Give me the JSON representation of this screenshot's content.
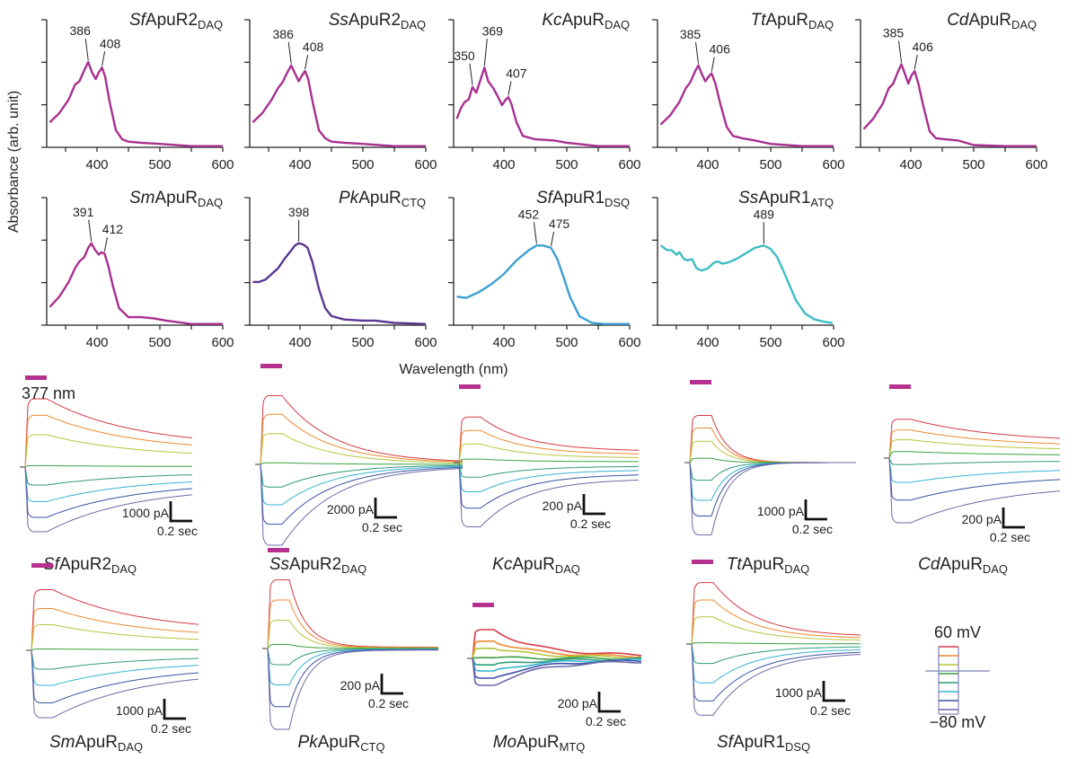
{
  "chart_data": [
    {
      "type": "line",
      "panel": "absorption-spectra",
      "xlabel": "Wavelength (nm)",
      "ylabel": "Absorbance (arb. unit)",
      "xlim": [
        320,
        600
      ],
      "ylim": [
        0,
        1.0
      ],
      "xticks": [
        400,
        500,
        600
      ],
      "xtick_labels": [
        "400",
        "500",
        "600"
      ],
      "yticks_count": 4,
      "grid": false,
      "series": [
        {
          "name": "SfApuR2",
          "italic": "Sf",
          "base": "ApuR2",
          "sub": "DAQ",
          "color": "#a8308f",
          "peaks": [
            386,
            408
          ],
          "x": [
            325,
            340,
            355,
            365,
            372,
            380,
            386,
            392,
            398,
            403,
            408,
            413,
            420,
            430,
            440,
            450,
            470,
            500,
            550,
            600
          ],
          "y": [
            0.22,
            0.3,
            0.42,
            0.55,
            0.58,
            0.68,
            0.75,
            0.66,
            0.6,
            0.66,
            0.7,
            0.62,
            0.4,
            0.15,
            0.07,
            0.05,
            0.04,
            0.03,
            0.01,
            0.01
          ]
        },
        {
          "name": "SsApuR2",
          "italic": "Ss",
          "base": "ApuR2",
          "sub": "DAQ",
          "color": "#a8308f",
          "peaks": [
            386,
            408
          ],
          "x": [
            325,
            340,
            355,
            365,
            372,
            380,
            386,
            392,
            398,
            403,
            408,
            413,
            420,
            430,
            440,
            450,
            470,
            500,
            550,
            600
          ],
          "y": [
            0.22,
            0.3,
            0.42,
            0.52,
            0.57,
            0.66,
            0.72,
            0.65,
            0.58,
            0.63,
            0.67,
            0.6,
            0.4,
            0.15,
            0.08,
            0.05,
            0.04,
            0.03,
            0.01,
            0.01
          ]
        },
        {
          "name": "KcApuR",
          "italic": "Kc",
          "base": "ApuR",
          "sub": "DAQ",
          "color": "#a8308f",
          "peaks": [
            350,
            369,
            407
          ],
          "x": [
            325,
            332,
            338,
            344,
            350,
            356,
            362,
            369,
            375,
            383,
            390,
            397,
            403,
            407,
            412,
            420,
            430,
            450,
            480,
            500,
            550,
            600
          ],
          "y": [
            0.25,
            0.35,
            0.4,
            0.42,
            0.53,
            0.48,
            0.58,
            0.7,
            0.58,
            0.52,
            0.45,
            0.37,
            0.42,
            0.44,
            0.38,
            0.22,
            0.1,
            0.07,
            0.06,
            0.04,
            0.01,
            0.01
          ]
        },
        {
          "name": "TtApuR",
          "italic": "Tt",
          "base": "ApuR",
          "sub": "DAQ",
          "color": "#a8308f",
          "peaks": [
            385,
            406
          ],
          "x": [
            325,
            340,
            355,
            365,
            372,
            380,
            385,
            390,
            396,
            401,
            406,
            412,
            420,
            430,
            440,
            455,
            475,
            500,
            550,
            600
          ],
          "y": [
            0.2,
            0.28,
            0.4,
            0.52,
            0.57,
            0.67,
            0.72,
            0.65,
            0.58,
            0.62,
            0.65,
            0.56,
            0.38,
            0.18,
            0.1,
            0.08,
            0.06,
            0.03,
            0.01,
            0.01
          ]
        },
        {
          "name": "CdApuR",
          "italic": "Cd",
          "base": "ApuR",
          "sub": "DAQ",
          "color": "#a8308f",
          "peaks": [
            385,
            406
          ],
          "x": [
            325,
            340,
            355,
            365,
            372,
            380,
            385,
            391,
            396,
            401,
            406,
            412,
            420,
            430,
            440,
            455,
            475,
            500,
            550,
            600
          ],
          "y": [
            0.16,
            0.25,
            0.38,
            0.52,
            0.56,
            0.67,
            0.73,
            0.64,
            0.56,
            0.63,
            0.67,
            0.56,
            0.36,
            0.14,
            0.08,
            0.07,
            0.06,
            0.02,
            0.01,
            0.01
          ]
        },
        {
          "name": "SmApuR",
          "italic": "Sm",
          "base": "ApuR",
          "sub": "DAQ",
          "color": "#a8308f",
          "peaks": [
            391,
            412
          ],
          "x": [
            325,
            340,
            355,
            365,
            372,
            380,
            386,
            391,
            397,
            403,
            407,
            412,
            418,
            425,
            435,
            450,
            470,
            490,
            510,
            550,
            600
          ],
          "y": [
            0.16,
            0.25,
            0.38,
            0.5,
            0.56,
            0.6,
            0.68,
            0.72,
            0.66,
            0.62,
            0.64,
            0.63,
            0.52,
            0.35,
            0.15,
            0.07,
            0.07,
            0.06,
            0.04,
            0.01,
            0.01
          ]
        },
        {
          "name": "PkApuR",
          "italic": "Pk",
          "base": "ApuR",
          "sub": "CTQ",
          "color": "#5b3791",
          "peaks": [
            398
          ],
          "x": [
            325,
            335,
            345,
            355,
            365,
            375,
            385,
            392,
            398,
            405,
            412,
            420,
            430,
            440,
            450,
            470,
            500,
            520,
            550,
            600
          ],
          "y": [
            0.38,
            0.38,
            0.4,
            0.45,
            0.5,
            0.58,
            0.65,
            0.7,
            0.72,
            0.71,
            0.68,
            0.55,
            0.32,
            0.15,
            0.08,
            0.05,
            0.04,
            0.04,
            0.02,
            0.01
          ]
        },
        {
          "name": "SfApuR1",
          "italic": "Sf",
          "base": "ApuR1",
          "sub": "DSQ",
          "color": "#3f9fd2",
          "peaks": [
            452,
            475
          ],
          "x": [
            325,
            340,
            360,
            380,
            400,
            420,
            440,
            452,
            462,
            475,
            485,
            495,
            505,
            520,
            540,
            560,
            580,
            600
          ],
          "y": [
            0.25,
            0.24,
            0.29,
            0.36,
            0.45,
            0.57,
            0.66,
            0.7,
            0.7,
            0.68,
            0.58,
            0.42,
            0.25,
            0.08,
            0.02,
            0.01,
            0.01,
            0.01
          ]
        },
        {
          "name": "SsApuR1",
          "italic": "Ss",
          "base": "ApuR1",
          "sub": "ATQ",
          "color": "#3fbcc4",
          "peaks": [
            489
          ],
          "x": [
            325,
            335,
            342,
            350,
            355,
            362,
            368,
            375,
            382,
            390,
            400,
            410,
            416,
            423,
            432,
            445,
            460,
            475,
            489,
            500,
            510,
            520,
            530,
            540,
            555,
            570,
            585,
            598
          ],
          "y": [
            0.7,
            0.66,
            0.66,
            0.62,
            0.64,
            0.58,
            0.57,
            0.58,
            0.5,
            0.48,
            0.5,
            0.55,
            0.56,
            0.54,
            0.55,
            0.58,
            0.63,
            0.68,
            0.7,
            0.67,
            0.6,
            0.48,
            0.35,
            0.22,
            0.1,
            0.05,
            0.03,
            0.02
          ]
        }
      ]
    },
    {
      "type": "line",
      "panel": "photocurrent-traces",
      "title": "377 nm",
      "legend": {
        "top": "60 mV",
        "bottom": "−80 mV",
        "placement": "bottom-right",
        "steps": 8
      },
      "voltage_colors": [
        "#d63a46",
        "#ef8a2e",
        "#b9c43a",
        "#3ca040",
        "#2e9a7a",
        "#36b3d3",
        "#3b52a3",
        "#6e6aa8"
      ],
      "light_bar_color": "#b5308f",
      "scale_time": "0.2 sec",
      "recordings": [
        {
          "italic": "Sf",
          "base": "ApuR2",
          "sub": "DAQ",
          "scale_current": "1000 pA",
          "on_amps": [
            0.95,
            0.72,
            0.45,
            0.02,
            -0.25,
            -0.48,
            -0.7,
            -0.9
          ],
          "end_frac": 0.3,
          "decay": "slow"
        },
        {
          "italic": "Ss",
          "base": "ApuR2",
          "sub": "DAQ",
          "scale_current": "2000 pA",
          "on_amps": [
            0.85,
            0.62,
            0.38,
            0.02,
            -0.28,
            -0.5,
            -0.74,
            -1.0
          ],
          "end_frac": 0.02,
          "decay": "medium"
        },
        {
          "italic": "Kc",
          "base": "ApuR",
          "sub": "DAQ",
          "scale_current": "200 pA",
          "on_amps": [
            0.78,
            0.55,
            0.32,
            0.06,
            -0.25,
            -0.5,
            -0.78,
            -1.1
          ],
          "end_frac": 0.25,
          "decay": "medium"
        },
        {
          "italic": "Tt",
          "base": "ApuR",
          "sub": "DAQ",
          "scale_current": "1000 pA",
          "on_amps": [
            0.75,
            0.55,
            0.34,
            0.07,
            -0.28,
            -0.6,
            -0.85,
            -1.15
          ],
          "end_frac": 0.0,
          "decay": "fast"
        },
        {
          "italic": "Cd",
          "base": "ApuR",
          "sub": "DAQ",
          "scale_current": "200 pA",
          "on_amps": [
            0.72,
            0.52,
            0.34,
            0.12,
            -0.12,
            -0.45,
            -0.78,
            -1.2
          ],
          "end_frac": 0.4,
          "decay": "slow"
        },
        {
          "italic": "Sm",
          "base": "ApuR",
          "sub": "DAQ",
          "scale_current": "1000 pA",
          "on_amps": [
            0.9,
            0.62,
            0.38,
            0.02,
            -0.28,
            -0.52,
            -0.78,
            -1.0
          ],
          "end_frac": 0.3,
          "decay": "slow"
        },
        {
          "italic": "Pk",
          "base": "ApuR",
          "sub": "CTQ",
          "scale_current": "200 pA",
          "on_amps": [
            0.85,
            0.6,
            0.35,
            0.05,
            -0.2,
            -0.45,
            -0.72,
            -1.0
          ],
          "end_frac": 0.02,
          "decay": "fast"
        },
        {
          "italic": "Mo",
          "base": "ApuR",
          "sub": "MTQ",
          "scale_current": "200 pA",
          "on_amps": [
            0.8,
            0.48,
            0.28,
            0.02,
            -0.18,
            -0.35,
            -0.55,
            -0.75
          ],
          "end_frac": 0.1,
          "decay": "medium",
          "noisy": true
        },
        {
          "italic": "Sf",
          "base": "ApuR1",
          "sub": "DSQ",
          "scale_current": "1000 pA",
          "on_amps": [
            0.95,
            0.68,
            0.42,
            0.02,
            -0.3,
            -0.6,
            -0.88,
            -1.1
          ],
          "end_frac": 0.12,
          "decay": "medium"
        }
      ]
    }
  ]
}
